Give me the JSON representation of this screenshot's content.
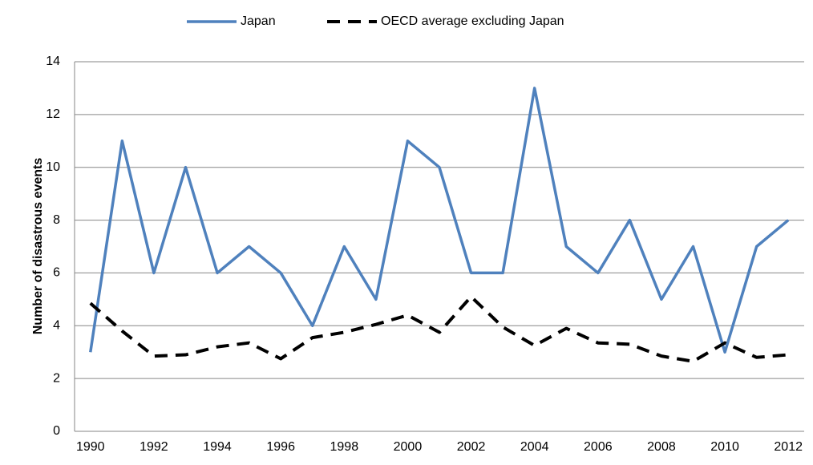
{
  "chart_data": {
    "type": "line",
    "y_label": "Number of disastrous events",
    "categories": [
      1990,
      null,
      1992,
      null,
      1994,
      null,
      1996,
      null,
      1998,
      null,
      2000,
      null,
      2002,
      null,
      2004,
      null,
      2006,
      null,
      2008,
      null,
      2010,
      null,
      2012
    ],
    "series": [
      {
        "name": "Japan",
        "color": "#4f81bd",
        "line_style": "solid",
        "values": [
          3,
          11,
          6,
          10,
          6,
          7,
          6,
          4,
          7,
          5,
          11,
          10,
          6,
          6,
          13,
          7,
          6,
          8,
          5,
          7,
          3,
          7,
          8
        ]
      },
      {
        "name": "OECD average excluding Japan",
        "color": "#000000",
        "line_style": "dashed",
        "values": [
          4.85,
          3.8,
          2.85,
          2.9,
          3.2,
          3.35,
          2.75,
          3.55,
          3.75,
          4.05,
          4.4,
          3.75,
          5.1,
          3.95,
          3.25,
          3.9,
          3.35,
          3.3,
          2.85,
          2.65,
          3.35,
          2.8,
          2.9
        ]
      }
    ],
    "ylim": [
      0,
      14
    ],
    "yticks": [
      0,
      2,
      4,
      6,
      8,
      10,
      12,
      14
    ],
    "grid": true,
    "legend": "top"
  }
}
